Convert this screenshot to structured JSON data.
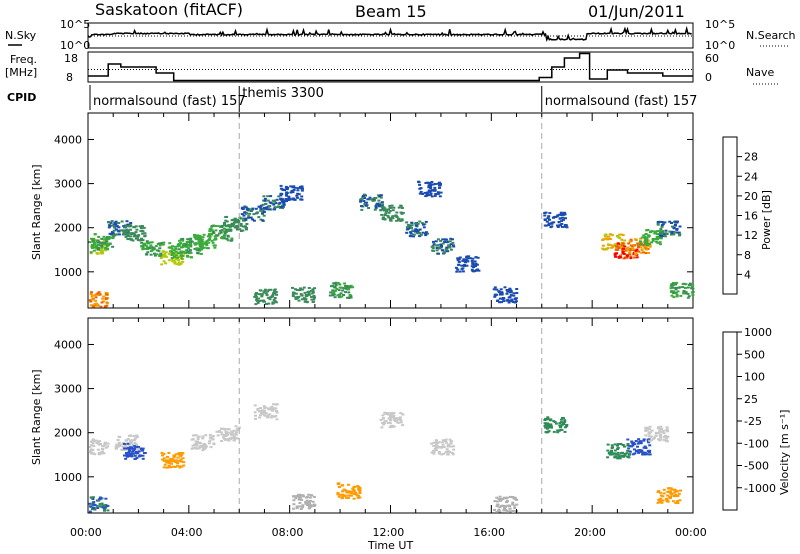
{
  "header": {
    "radar": "Saskatoon (fitACF)",
    "beam": "Beam 15",
    "date": "01/Jun/2011"
  },
  "noise_panel": {
    "left_label": "N.Sky",
    "right_label": "N.Search",
    "left_ticks": [
      "10^5",
      "10^0"
    ],
    "right_ticks": [
      "10^5",
      "10^0"
    ]
  },
  "freq_panel": {
    "left_label_1": "Freq.",
    "left_label_2": "[MHz]",
    "right_label": "Nave",
    "left_ticks": [
      "18",
      "8"
    ],
    "right_ticks": [
      "60",
      "0"
    ]
  },
  "cpid": {
    "label": "CPID",
    "segments": [
      {
        "name": "normalsound (fast) 157",
        "start_hour": 0
      },
      {
        "name": "themis 3300",
        "start_hour": 6
      },
      {
        "name": "normalsound (fast) 157",
        "start_hour": 18
      }
    ]
  },
  "axes": {
    "ylabel": "Slant Range [km]",
    "xlabel": "Time UT",
    "y_ticks": [
      "1000",
      "2000",
      "3000",
      "4000"
    ],
    "x_ticks": [
      "00:00",
      "04:00",
      "08:00",
      "12:00",
      "16:00",
      "20:00",
      "00:00"
    ]
  },
  "colors": {
    "power": [
      "#0000ff",
      "#1a4bb0",
      "#3b8a5a",
      "#3aaa3a",
      "#b6c80a",
      "#f2a000",
      "#f06000",
      "#ff0000"
    ],
    "velocity": [
      "#ff0000",
      "#ff5a00",
      "#ff9a00",
      "#b0b0b0",
      "#c8c8c8",
      "#50c050",
      "#2e8b57",
      "#2850c8"
    ]
  },
  "power_colorbar": {
    "label": "Power [dB]",
    "ticks": [
      "4",
      "8",
      "12",
      "16",
      "20",
      "24",
      "28"
    ]
  },
  "velocity_colorbar": {
    "label": "Velocity [m s⁻¹]",
    "ticks": [
      "-1000",
      "-500",
      "-100",
      "-25",
      "25",
      "100",
      "500",
      "1000"
    ]
  },
  "chart_data": {
    "type": "heatmap",
    "title": "Saskatoon (fitACF) Beam 15 01/Jun/2011",
    "x_unit": "hour UT",
    "xlim": [
      0,
      24
    ],
    "ylim": [
      180,
      4600
    ],
    "xlabel": "Time UT",
    "ylabel": "Slant Range [km]",
    "cpid_change_hours": [
      6,
      18
    ],
    "frequency_mhz": [
      {
        "start_hour": 0.0,
        "end_hour": 0.8,
        "value": 10
      },
      {
        "start_hour": 0.8,
        "end_hour": 1.3,
        "value": 14
      },
      {
        "start_hour": 1.3,
        "end_hour": 2.7,
        "value": 13
      },
      {
        "start_hour": 2.7,
        "end_hour": 3.4,
        "value": 11
      },
      {
        "start_hour": 3.4,
        "end_hour": 17.9,
        "value": 8.5
      },
      {
        "start_hour": 17.9,
        "end_hour": 18.4,
        "value": 9.5
      },
      {
        "start_hour": 18.4,
        "end_hour": 18.9,
        "value": 13
      },
      {
        "start_hour": 18.9,
        "end_hour": 19.5,
        "value": 16
      },
      {
        "start_hour": 19.5,
        "end_hour": 19.9,
        "value": 17.5
      },
      {
        "start_hour": 19.9,
        "end_hour": 20.6,
        "value": 9
      },
      {
        "start_hour": 20.6,
        "end_hour": 21.4,
        "value": 12
      },
      {
        "start_hour": 21.4,
        "end_hour": 22.8,
        "value": 11
      },
      {
        "start_hour": 22.8,
        "end_hour": 24.0,
        "value": 10
      }
    ],
    "nave_level": 25,
    "power_db": [
      {
        "hour": 0.3,
        "range_km": 400,
        "value": 24
      },
      {
        "hour": 0.2,
        "range_km": 1600,
        "value": 16
      },
      {
        "hour": 0.5,
        "range_km": 1700,
        "value": 12
      },
      {
        "hour": 1.2,
        "range_km": 2000,
        "value": 8
      },
      {
        "hour": 1.8,
        "range_km": 1900,
        "value": 10
      },
      {
        "hour": 2.5,
        "range_km": 1550,
        "value": 12
      },
      {
        "hour": 3.3,
        "range_km": 1350,
        "value": 18
      },
      {
        "hour": 3.6,
        "range_km": 1500,
        "value": 14
      },
      {
        "hour": 4.0,
        "range_km": 1600,
        "value": 12
      },
      {
        "hour": 4.6,
        "range_km": 1700,
        "value": 14
      },
      {
        "hour": 5.2,
        "range_km": 1900,
        "value": 12
      },
      {
        "hour": 5.8,
        "range_km": 2100,
        "value": 10
      },
      {
        "hour": 6.5,
        "range_km": 2350,
        "value": 8
      },
      {
        "hour": 7.3,
        "range_km": 2600,
        "value": 8
      },
      {
        "hour": 8.0,
        "range_km": 2800,
        "value": 6
      },
      {
        "hour": 7.0,
        "range_km": 450,
        "value": 10
      },
      {
        "hour": 8.5,
        "range_km": 500,
        "value": 10
      },
      {
        "hour": 10.0,
        "range_km": 600,
        "value": 12
      },
      {
        "hour": 11.2,
        "range_km": 2600,
        "value": 8
      },
      {
        "hour": 12.0,
        "range_km": 2350,
        "value": 10
      },
      {
        "hour": 13.0,
        "range_km": 2000,
        "value": 8
      },
      {
        "hour": 14.0,
        "range_km": 1600,
        "value": 8
      },
      {
        "hour": 15.0,
        "range_km": 1200,
        "value": 6
      },
      {
        "hour": 13.5,
        "range_km": 2900,
        "value": 6
      },
      {
        "hour": 16.5,
        "range_km": 500,
        "value": 6
      },
      {
        "hour": 18.5,
        "range_km": 2200,
        "value": 6
      },
      {
        "hour": 20.8,
        "range_km": 1700,
        "value": 20
      },
      {
        "hour": 21.3,
        "range_km": 1500,
        "value": 28
      },
      {
        "hour": 21.8,
        "range_km": 1600,
        "value": 24
      },
      {
        "hour": 22.3,
        "range_km": 1800,
        "value": 14
      },
      {
        "hour": 23.0,
        "range_km": 2000,
        "value": 8
      },
      {
        "hour": 23.5,
        "range_km": 600,
        "value": 12
      }
    ],
    "velocity_ms": [
      {
        "hour": 0.3,
        "range_km": 400,
        "value": 500
      },
      {
        "hour": 0.3,
        "range_km": 1700,
        "value": 0
      },
      {
        "hour": 1.5,
        "range_km": 1800,
        "value": 0
      },
      {
        "hour": 1.8,
        "range_km": 1600,
        "value": 1000
      },
      {
        "hour": 3.3,
        "range_km": 1400,
        "value": -300
      },
      {
        "hour": 4.5,
        "range_km": 1800,
        "value": 0
      },
      {
        "hour": 5.5,
        "range_km": 2000,
        "value": 0
      },
      {
        "hour": 7.0,
        "range_km": 2500,
        "value": 0
      },
      {
        "hour": 8.5,
        "range_km": 450,
        "value": -50
      },
      {
        "hour": 10.3,
        "range_km": 700,
        "value": -300
      },
      {
        "hour": 12.0,
        "range_km": 2300,
        "value": 0
      },
      {
        "hour": 14.0,
        "range_km": 1700,
        "value": 0
      },
      {
        "hour": 16.5,
        "range_km": 400,
        "value": -50
      },
      {
        "hour": 18.5,
        "range_km": 2200,
        "value": 300
      },
      {
        "hour": 21.0,
        "range_km": 1600,
        "value": 300
      },
      {
        "hour": 21.8,
        "range_km": 1700,
        "value": 800
      },
      {
        "hour": 22.5,
        "range_km": 2000,
        "value": 0
      },
      {
        "hour": 23.0,
        "range_km": 600,
        "value": -200
      }
    ]
  }
}
